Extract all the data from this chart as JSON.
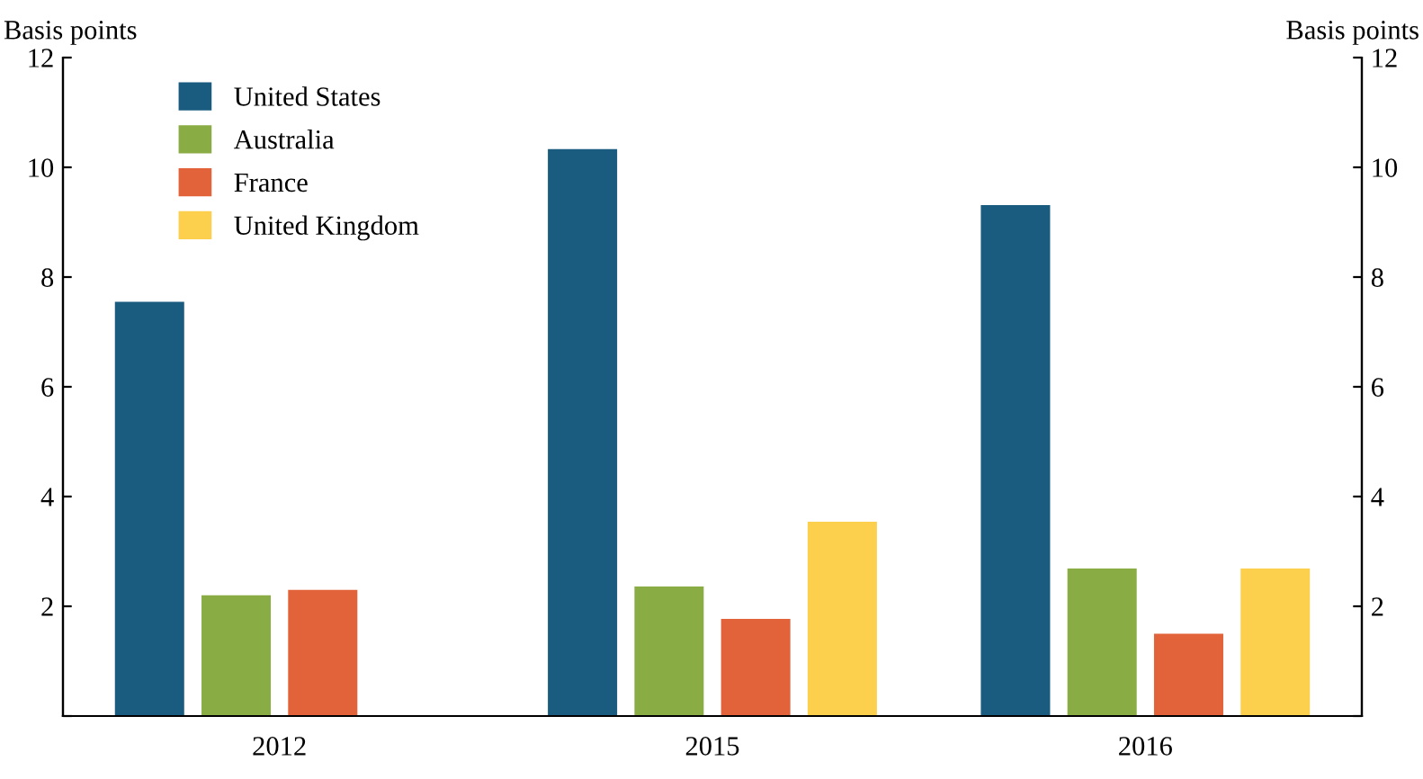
{
  "chart_data": {
    "type": "bar",
    "ylabel": "Basis points",
    "y2label": "Basis points",
    "categories": [
      "2012",
      "2015",
      "2016"
    ],
    "series": [
      {
        "name": "United States",
        "color": "#1a5c80",
        "values": [
          7.55,
          10.33,
          9.31
        ]
      },
      {
        "name": "Australia",
        "color": "#8aac45",
        "values": [
          2.2,
          2.36,
          2.69
        ]
      },
      {
        "name": "France",
        "color": "#e2623a",
        "values": [
          2.3,
          1.77,
          1.5
        ]
      },
      {
        "name": "United Kingdom",
        "color": "#fccf4d",
        "values": [
          null,
          3.54,
          2.69
        ]
      }
    ],
    "ylim": [
      0,
      12
    ],
    "yticks": [
      {
        "value": 0,
        "label": null
      },
      2,
      4,
      6,
      8,
      10,
      12
    ],
    "y2lim": [
      0,
      12
    ],
    "y2ticks": [
      {
        "value": 0,
        "label": null
      },
      2,
      4,
      6,
      8,
      10,
      12
    ],
    "grid": false,
    "legend": "top left"
  }
}
